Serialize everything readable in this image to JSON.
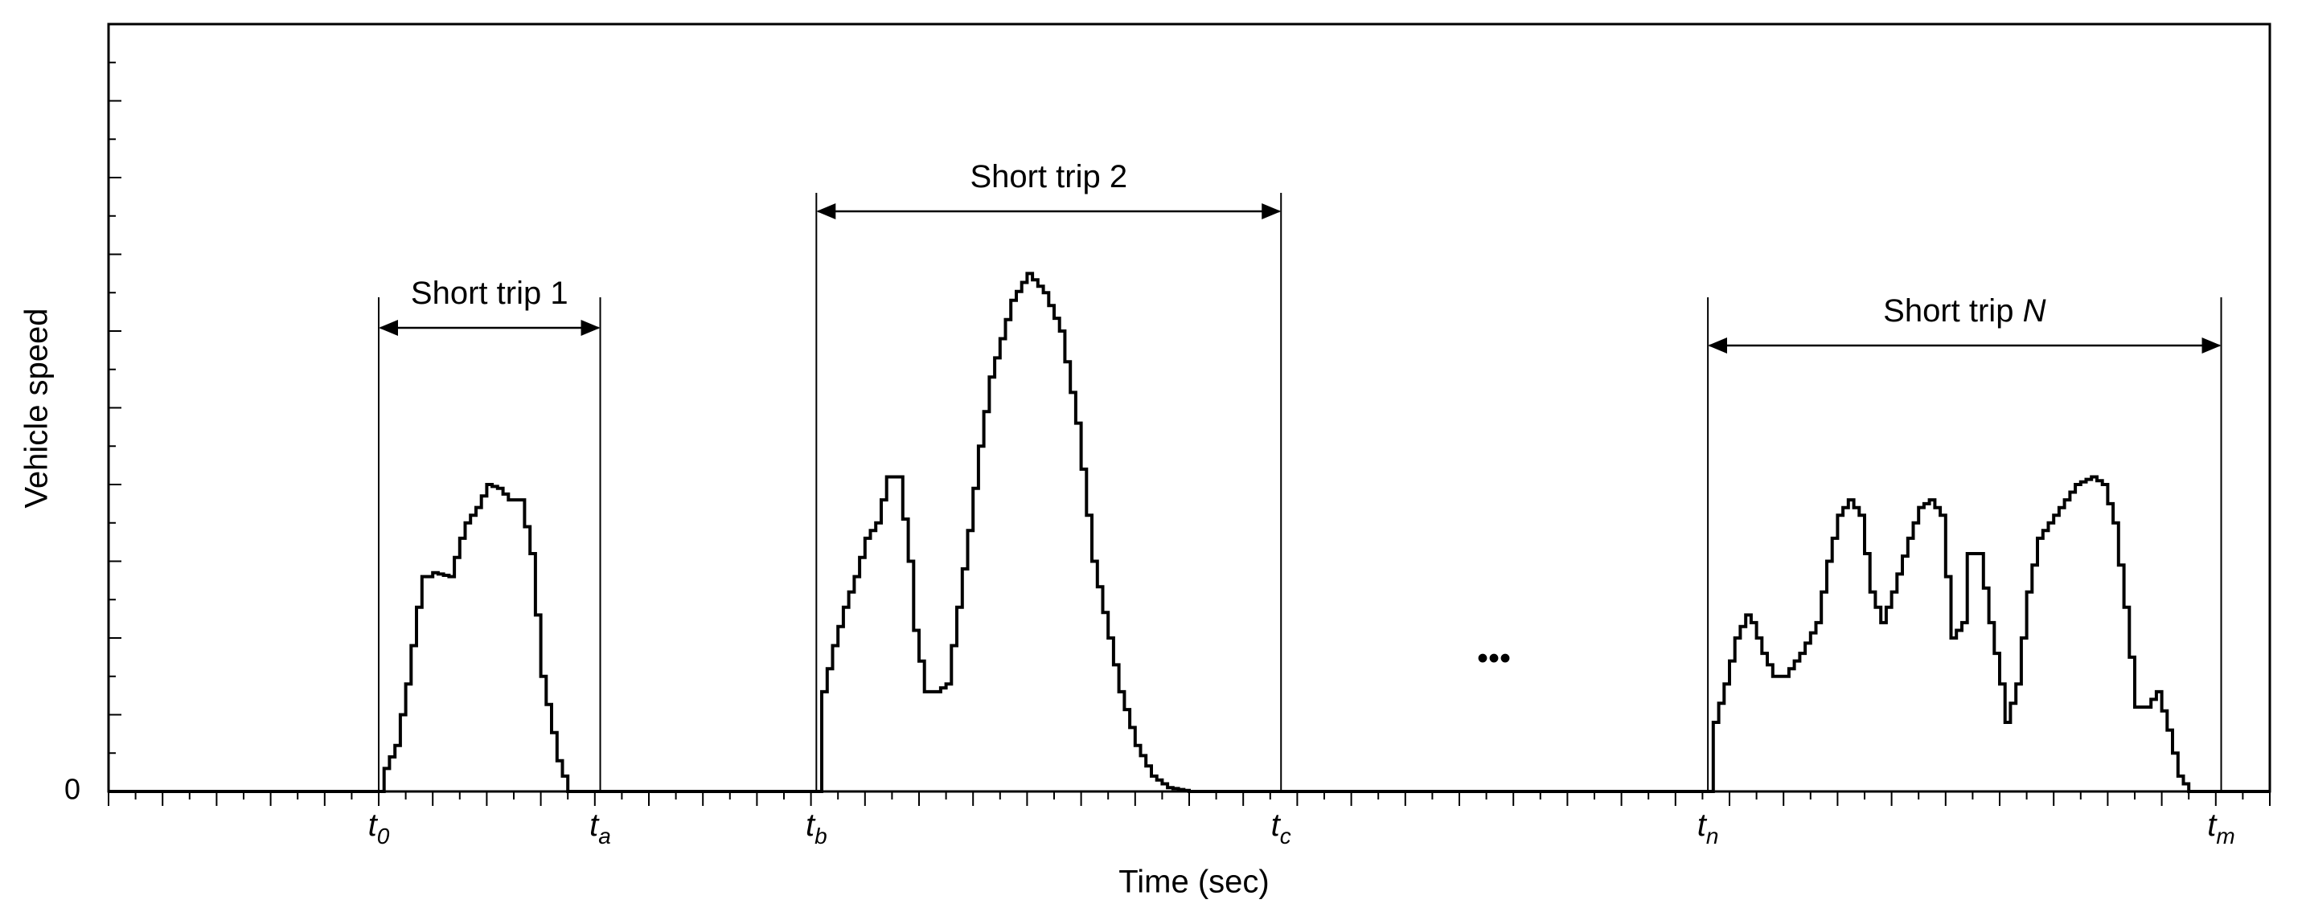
{
  "chart_data": {
    "type": "line",
    "title": "",
    "xlabel": "Time (sec)",
    "ylabel": "Vehicle speed",
    "grid": false,
    "legend": "none",
    "ylim": [
      0,
      10
    ],
    "y_tick_labels": [
      "0"
    ],
    "x_time_marks": [
      {
        "base": "t",
        "sub": "0",
        "x": 5.0
      },
      {
        "base": "t",
        "sub": "a",
        "x": 9.1
      },
      {
        "base": "t",
        "sub": "b",
        "x": 13.1
      },
      {
        "base": "t",
        "sub": "c",
        "x": 21.7
      },
      {
        "base": "t",
        "sub": "n",
        "x": 29.6
      },
      {
        "base": "t",
        "sub": "m",
        "x": 39.1
      }
    ],
    "trips": [
      {
        "label": "Short trip ",
        "label_italic": "1",
        "start_index": 0,
        "end_index": 1
      },
      {
        "label": "Short trip ",
        "label_italic": "2",
        "start_index": 2,
        "end_index": 3
      },
      {
        "label": "Short trip ",
        "label_italic": "N",
        "start_index": 4,
        "end_index": 5
      }
    ],
    "ellipsis": "•••",
    "series": [
      {
        "x": [
          0.0,
          5.0,
          5.1,
          5.3,
          5.5,
          5.7,
          5.8,
          5.9,
          6.0,
          6.3,
          6.5,
          6.6,
          6.8,
          7.0,
          7.2,
          7.4,
          7.6,
          7.8,
          8.0,
          8.3,
          8.5,
          8.7,
          8.8,
          8.9,
          9.0,
          9.1,
          13.1,
          13.2,
          13.4,
          13.6,
          13.8,
          14.0,
          14.2,
          14.4,
          14.6,
          14.8,
          14.9,
          15.1,
          15.3,
          15.5,
          15.6,
          15.9,
          16.1,
          16.3,
          16.5,
          16.7,
          17.0,
          17.3,
          17.6,
          17.9,
          18.2,
          18.5,
          18.7,
          19.0,
          19.3,
          19.6,
          20.0,
          20.4,
          20.7,
          21.0,
          21.2,
          21.4,
          21.7,
          29.6,
          29.7,
          29.9,
          30.1,
          30.3,
          30.4,
          30.6,
          30.8,
          31.0,
          31.3,
          31.6,
          31.8,
          32.0,
          32.2,
          32.4,
          32.6,
          32.8,
          33.0,
          33.3,
          33.5,
          33.7,
          33.9,
          34.1,
          34.3,
          34.4,
          34.6,
          34.8,
          35.0,
          35.1,
          35.3,
          35.5,
          35.7,
          36.0,
          36.2,
          36.4,
          36.7,
          36.9,
          37.1,
          37.3,
          37.5,
          37.7,
          37.9,
          38.1,
          38.3,
          38.5,
          38.7,
          38.9,
          39.0,
          39.1,
          40.0
        ],
        "y": [
          0.0,
          0.0,
          0.3,
          0.6,
          1.4,
          2.4,
          2.8,
          2.8,
          2.85,
          2.8,
          3.3,
          3.5,
          3.7,
          4.0,
          3.95,
          3.8,
          3.8,
          3.1,
          1.5,
          0.4,
          0.0,
          0.0,
          0.0,
          0.0,
          0.0,
          0.0,
          0.0,
          1.3,
          1.9,
          2.4,
          2.8,
          3.3,
          3.5,
          4.1,
          4.1,
          3.0,
          2.1,
          1.3,
          1.3,
          1.4,
          1.9,
          3.4,
          4.5,
          5.4,
          5.9,
          6.4,
          6.75,
          6.5,
          6.0,
          4.8,
          3.0,
          2.0,
          1.3,
          0.6,
          0.2,
          0.05,
          0.0,
          0.0,
          0.0,
          0.0,
          0.0,
          0.0,
          0.0,
          0.0,
          0.9,
          1.4,
          2.0,
          2.3,
          2.2,
          1.8,
          1.5,
          1.5,
          1.8,
          2.2,
          3.0,
          3.6,
          3.8,
          3.6,
          2.6,
          2.2,
          2.6,
          3.3,
          3.7,
          3.8,
          3.6,
          2.0,
          2.2,
          3.1,
          3.1,
          2.2,
          1.4,
          0.9,
          1.4,
          2.6,
          3.3,
          3.6,
          3.8,
          4.0,
          4.1,
          4.0,
          3.5,
          2.4,
          1.1,
          1.1,
          1.3,
          0.8,
          0.2,
          0.0,
          0.0,
          0.0,
          0.0,
          0.0,
          0.0
        ]
      }
    ]
  }
}
